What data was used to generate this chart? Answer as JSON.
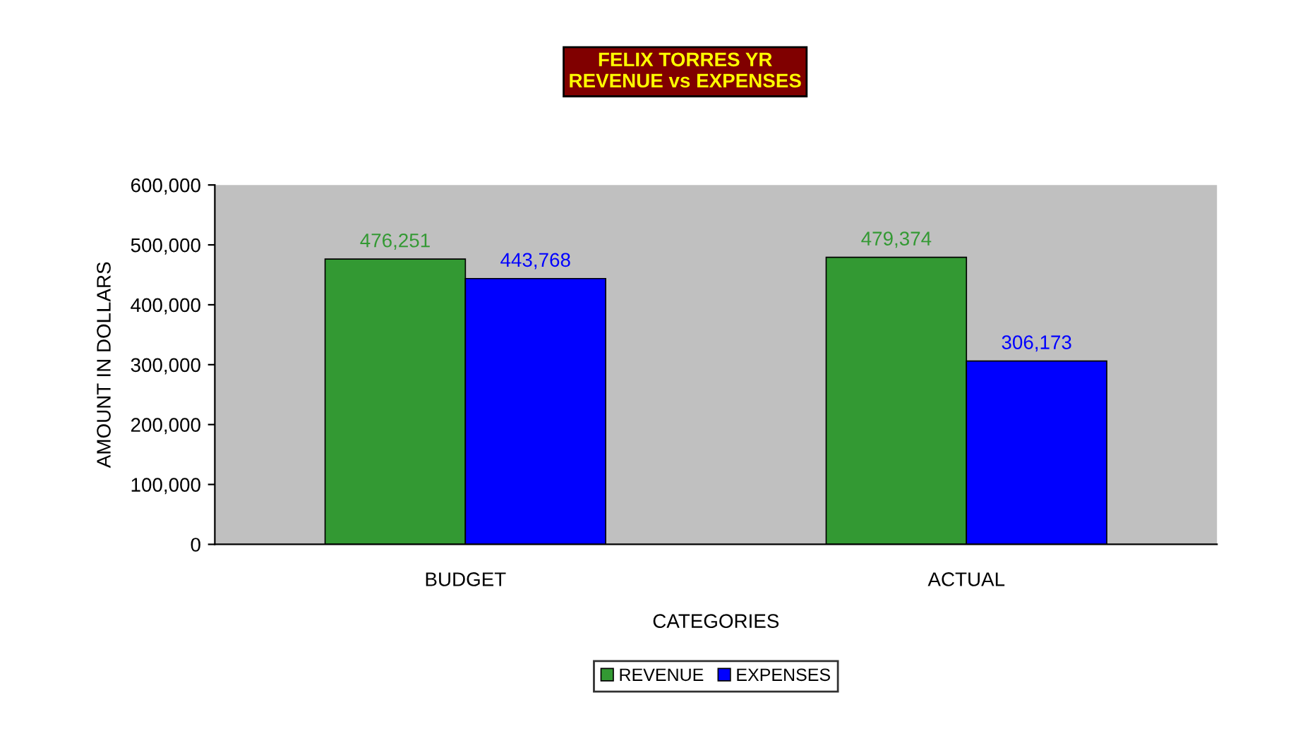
{
  "chart_data": {
    "type": "bar",
    "title": "FELIX TORRES YR\nREVENUE vs EXPENSES",
    "xlabel": "CATEGORIES",
    "ylabel": "AMOUNT IN DOLLARS",
    "categories": [
      "BUDGET",
      "ACTUAL"
    ],
    "series": [
      {
        "name": "REVENUE",
        "color": "#339933",
        "values": [
          476251,
          479374
        ],
        "value_labels": [
          "476,251",
          "479,374"
        ]
      },
      {
        "name": "EXPENSES",
        "color": "#0000ff",
        "values": [
          443768,
          306173
        ],
        "value_labels": [
          "443,768",
          "306,173"
        ]
      }
    ],
    "ylim": [
      0,
      600000
    ],
    "yticks": [
      0,
      {
        "value": 100000,
        "label": "100,000"
      },
      {
        "value": 200000,
        "label": "200,000"
      },
      {
        "value": 300000,
        "label": "300,000"
      },
      {
        "value": 400000,
        "label": "400,000"
      },
      {
        "value": 500000,
        "label": "500,000"
      },
      {
        "value": 600000,
        "label": "600,000"
      }
    ],
    "grid": false,
    "legend": "bottom"
  }
}
